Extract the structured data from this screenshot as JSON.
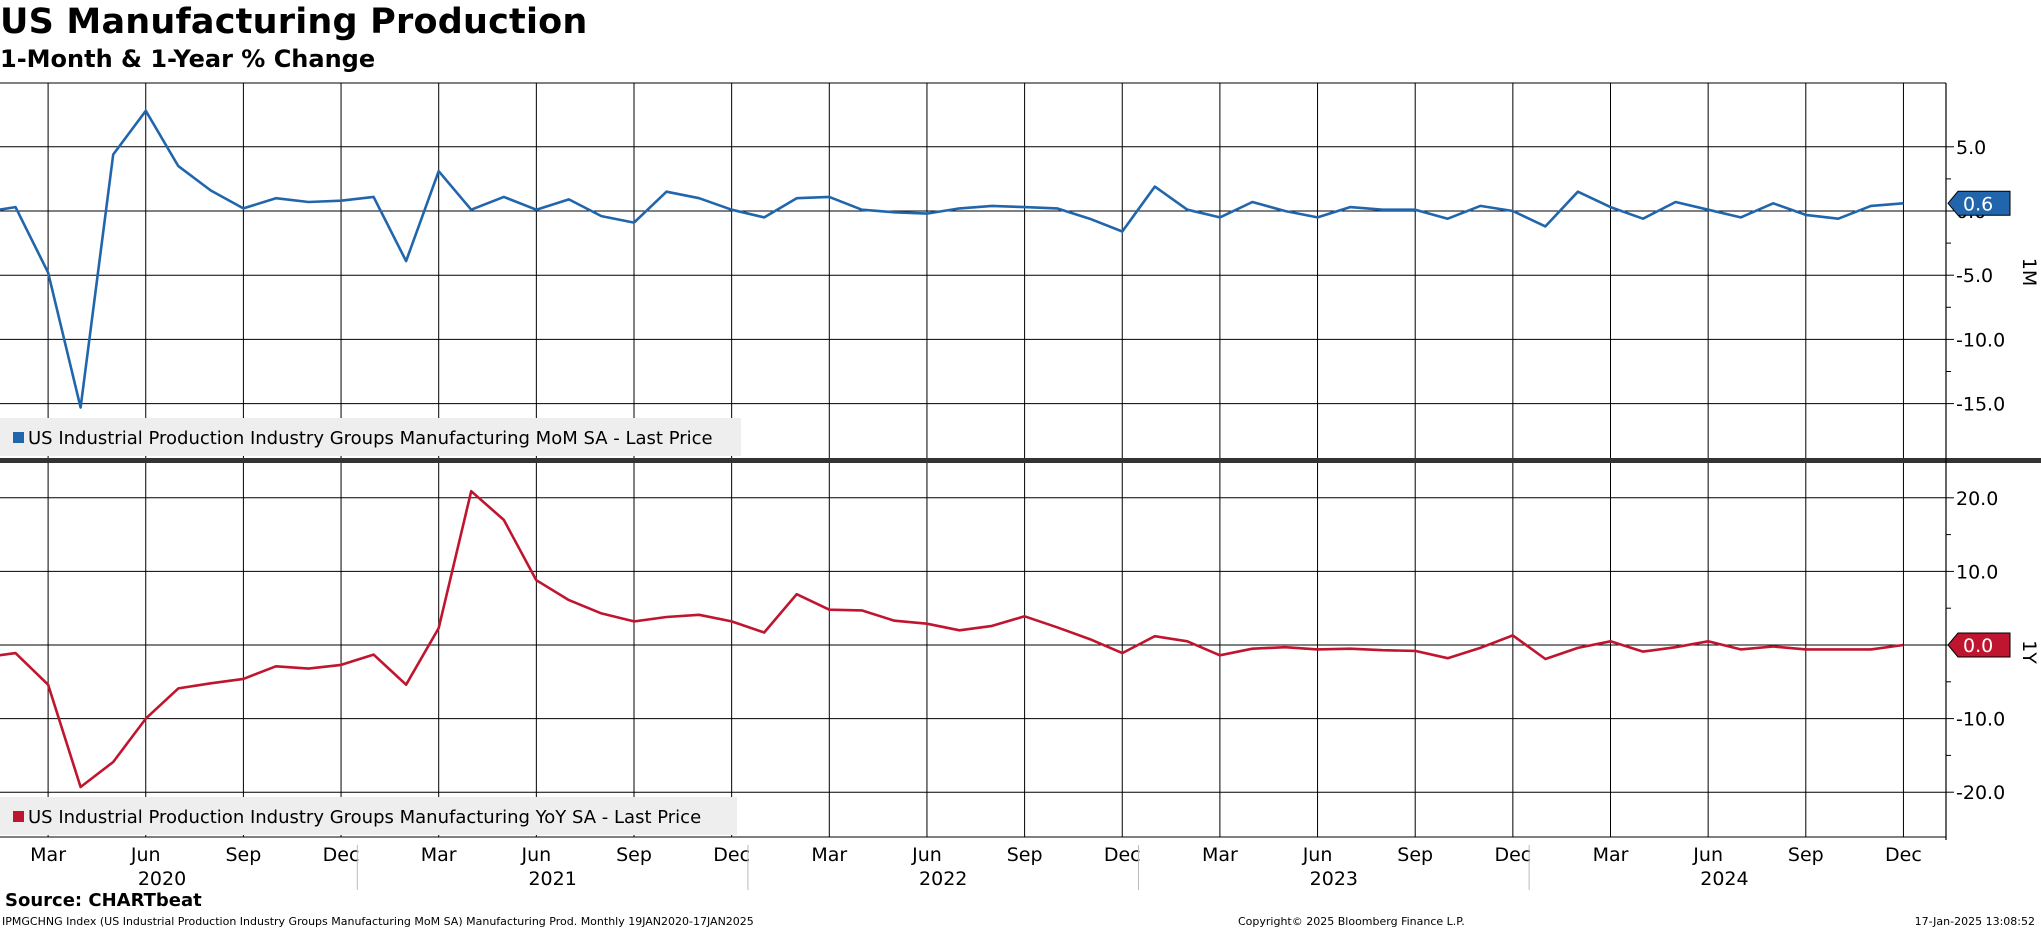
{
  "header": {
    "title": "US Manufacturing Production",
    "subtitle": "1-Month & 1-Year % Change"
  },
  "footer": {
    "source": "Source: CHARTbeat",
    "left": "IPMGCHNG Index (US Industrial Production Industry Groups Manufacturing MoM SA) Manufacturing Prod.  Monthly 19JAN2020-17JAN2025",
    "center": "Copyright© 2025 Bloomberg Finance L.P.",
    "right": "17-Jan-2025 13:08:52"
  },
  "colors": {
    "mom": "#2166ac",
    "yoy": "#c0152f",
    "grid": "#000000",
    "divider": "#333333",
    "legend_bg": "#eeeeee"
  },
  "chart_data": [
    {
      "type": "line",
      "panel_label": "1M",
      "legend": "US Industrial Production Industry Groups Manufacturing MoM SA - Last Price",
      "last_value_label": "0.6",
      "ylim": [
        -19,
        10
      ],
      "yticks": [
        5.0,
        0.0,
        -5.0,
        -10.0,
        -15.0
      ],
      "ytick_labels": [
        "5.0",
        "0.0",
        "-5.0",
        "-10.0",
        "-15.0"
      ],
      "grid": true,
      "x": [
        "2020-01",
        "2020-02",
        "2020-03",
        "2020-04",
        "2020-05",
        "2020-06",
        "2020-07",
        "2020-08",
        "2020-09",
        "2020-10",
        "2020-11",
        "2020-12",
        "2021-01",
        "2021-02",
        "2021-03",
        "2021-04",
        "2021-05",
        "2021-06",
        "2021-07",
        "2021-08",
        "2021-09",
        "2021-10",
        "2021-11",
        "2021-12",
        "2022-01",
        "2022-02",
        "2022-03",
        "2022-04",
        "2022-05",
        "2022-06",
        "2022-07",
        "2022-08",
        "2022-09",
        "2022-10",
        "2022-11",
        "2022-12",
        "2023-01",
        "2023-02",
        "2023-03",
        "2023-04",
        "2023-05",
        "2023-06",
        "2023-07",
        "2023-08",
        "2023-09",
        "2023-10",
        "2023-11",
        "2023-12",
        "2024-01",
        "2024-02",
        "2024-03",
        "2024-04",
        "2024-05",
        "2024-06",
        "2024-07",
        "2024-08",
        "2024-09",
        "2024-10",
        "2024-11",
        "2024-12"
      ],
      "series": [
        {
          "values": [
            -0.1,
            0.3,
            -4.8,
            -15.3,
            4.4,
            7.8,
            3.5,
            1.6,
            0.2,
            1.0,
            0.7,
            0.8,
            1.1,
            -3.9,
            3.1,
            0.1,
            1.1,
            0.1,
            0.9,
            -0.4,
            -0.9,
            1.5,
            1.0,
            0.1,
            -0.5,
            1.0,
            1.1,
            0.1,
            -0.1,
            -0.2,
            0.2,
            0.4,
            0.3,
            0.2,
            -0.6,
            -1.6,
            1.9,
            0.1,
            -0.5,
            0.7,
            0.0,
            -0.5,
            0.3,
            0.1,
            0.1,
            -0.6,
            0.4,
            0.0,
            -1.2,
            1.5,
            0.3,
            -0.6,
            0.7,
            0.1,
            -0.5,
            0.6,
            -0.3,
            -0.6,
            0.4,
            0.6
          ]
        }
      ]
    },
    {
      "type": "line",
      "panel_label": "1Y",
      "legend": "US Industrial Production Industry Groups Manufacturing YoY SA - Last Price",
      "last_value_label": "0.0",
      "ylim": [
        -26,
        26
      ],
      "yticks": [
        20.0,
        10.0,
        0.0,
        -10.0,
        -20.0
      ],
      "ytick_labels": [
        "20.0",
        "10.0",
        "0.0",
        "-10.0",
        "-20.0"
      ],
      "grid": true,
      "x": [
        "2020-01",
        "2020-02",
        "2020-03",
        "2020-04",
        "2020-05",
        "2020-06",
        "2020-07",
        "2020-08",
        "2020-09",
        "2020-10",
        "2020-11",
        "2020-12",
        "2021-01",
        "2021-02",
        "2021-03",
        "2021-04",
        "2021-05",
        "2021-06",
        "2021-07",
        "2021-08",
        "2021-09",
        "2021-10",
        "2021-11",
        "2021-12",
        "2022-01",
        "2022-02",
        "2022-03",
        "2022-04",
        "2022-05",
        "2022-06",
        "2022-07",
        "2022-08",
        "2022-09",
        "2022-10",
        "2022-11",
        "2022-12",
        "2023-01",
        "2023-02",
        "2023-03",
        "2023-04",
        "2023-05",
        "2023-06",
        "2023-07",
        "2023-08",
        "2023-09",
        "2023-10",
        "2023-11",
        "2023-12",
        "2024-01",
        "2024-02",
        "2024-03",
        "2024-04",
        "2024-05",
        "2024-06",
        "2024-07",
        "2024-08",
        "2024-09",
        "2024-10",
        "2024-11",
        "2024-12"
      ],
      "series": [
        {
          "values": [
            -1.7,
            -1.1,
            -5.4,
            -19.3,
            -15.9,
            -10.0,
            -5.9,
            -5.2,
            -4.6,
            -2.9,
            -3.2,
            -2.7,
            -1.3,
            -5.4,
            2.3,
            20.9,
            17.0,
            8.8,
            6.1,
            4.3,
            3.2,
            3.8,
            4.1,
            3.2,
            1.7,
            6.9,
            4.8,
            4.7,
            3.3,
            2.9,
            2.0,
            2.6,
            3.9,
            2.4,
            0.8,
            -1.1,
            1.2,
            0.5,
            -1.4,
            -0.5,
            -0.3,
            -0.6,
            -0.5,
            -0.7,
            -0.8,
            -1.8,
            -0.4,
            1.3,
            -1.9,
            -0.4,
            0.5,
            -0.9,
            -0.3,
            0.5,
            -0.6,
            -0.2,
            -0.6,
            -0.6,
            -0.6,
            0.0
          ]
        }
      ]
    }
  ],
  "x_axis": {
    "month_labels": [
      "Mar",
      "Jun",
      "Sep",
      "Dec",
      "Mar",
      "Jun",
      "Sep",
      "Dec",
      "Mar",
      "Jun",
      "Sep",
      "Dec",
      "Mar",
      "Jun",
      "Sep",
      "Dec",
      "Mar",
      "Jun",
      "Sep",
      "Dec"
    ],
    "year_labels": [
      "2020",
      "2021",
      "2022",
      "2023",
      "2024"
    ]
  }
}
